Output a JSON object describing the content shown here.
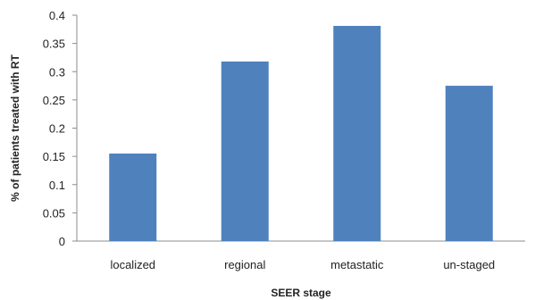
{
  "chart_data": {
    "type": "bar",
    "title": "",
    "xlabel": "SEER stage",
    "ylabel": "% of patients treated with RT",
    "categories": [
      "localized",
      "regional",
      "metastatic",
      "un-staged"
    ],
    "values": [
      0.155,
      0.318,
      0.381,
      0.275
    ],
    "ylim": [
      0,
      0.4
    ],
    "yticks": [
      "0",
      "0.05",
      "0.1",
      "0.15",
      "0.2",
      "0.25",
      "0.3",
      "0.35",
      "0.4"
    ],
    "grid": false,
    "legend": "none",
    "bar_color": "#4f81bd"
  }
}
